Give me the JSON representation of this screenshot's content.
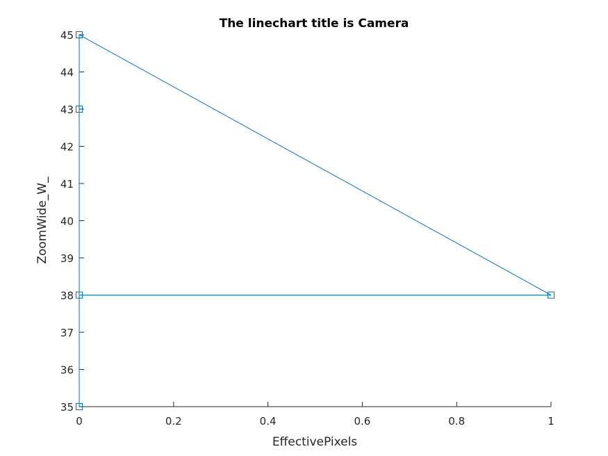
{
  "chart_data": {
    "type": "line",
    "title": "The linechart title is Camera",
    "xlabel": "EffectivePixels",
    "ylabel": "ZoomWide_W_",
    "xlim": [
      0,
      1
    ],
    "ylim": [
      35,
      45
    ],
    "xticks": [
      0,
      0.2,
      0.4,
      0.6,
      0.8,
      1
    ],
    "xtick_labels": [
      "0",
      "0.2",
      "0.4",
      "0.6",
      "0.8",
      "1"
    ],
    "yticks": [
      35,
      36,
      37,
      38,
      39,
      40,
      41,
      42,
      43,
      44,
      45
    ],
    "ytick_labels": [
      "35",
      "36",
      "37",
      "38",
      "39",
      "40",
      "41",
      "42",
      "43",
      "44",
      "45"
    ],
    "grid": false,
    "series": [
      {
        "color": "#0072bd",
        "marker": "square",
        "x": [
          0,
          0,
          0,
          1,
          0,
          0
        ],
        "y": [
          35,
          38,
          45,
          38,
          38,
          43
        ]
      }
    ]
  }
}
